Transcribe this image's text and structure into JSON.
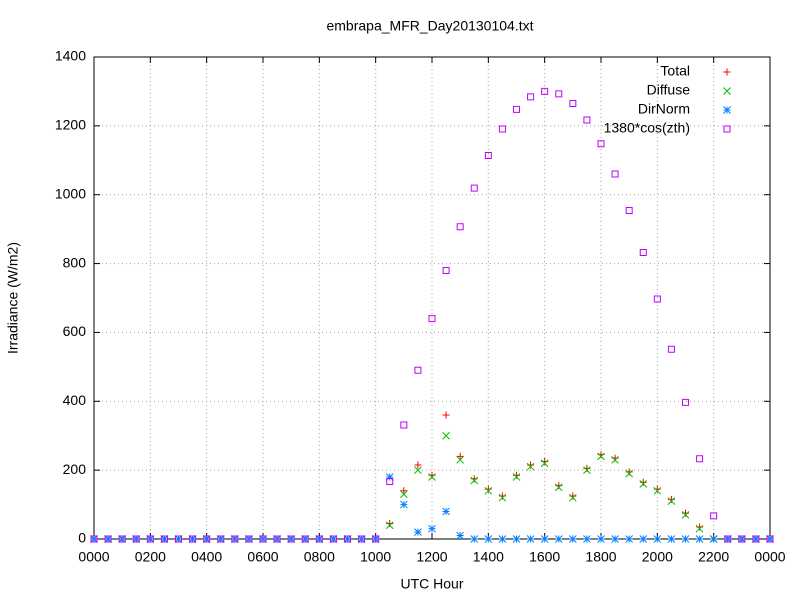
{
  "chart_data": {
    "type": "scatter",
    "title": "embrapa_MFR_Day20130104.txt",
    "x_label": "UTC Hour",
    "y_label": "Irradiance (W/m2)",
    "x": [
      0,
      0.5,
      1,
      1.5,
      2,
      2.5,
      3,
      3.5,
      4,
      4.5,
      5,
      5.5,
      6,
      6.5,
      7,
      7.5,
      8,
      8.5,
      9,
      9.5,
      10,
      10.5,
      11,
      11.5,
      12,
      12.5,
      13,
      13.5,
      14,
      14.5,
      15,
      15.5,
      16,
      16.5,
      17,
      17.5,
      18,
      18.5,
      19,
      19.5,
      20,
      20.5,
      21,
      21.5,
      22,
      22.5,
      23,
      23.5,
      24
    ],
    "series": [
      {
        "name": "Total",
        "color": "#ff0000",
        "marker": "plus",
        "values": [
          0,
          0,
          0,
          0,
          0,
          0,
          0,
          0,
          0,
          0,
          0,
          0,
          0,
          0,
          0,
          0,
          0,
          0,
          0,
          0,
          0,
          45,
          140,
          215,
          185,
          360,
          240,
          175,
          145,
          125,
          185,
          215,
          225,
          155,
          125,
          205,
          245,
          235,
          195,
          165,
          145,
          115,
          75,
          35,
          0,
          0,
          0,
          0,
          0
        ]
      },
      {
        "name": "Diffuse",
        "color": "#00c000",
        "marker": "cross",
        "values": [
          0,
          0,
          0,
          0,
          0,
          0,
          0,
          0,
          0,
          0,
          0,
          0,
          0,
          0,
          0,
          0,
          0,
          0,
          0,
          0,
          0,
          40,
          130,
          200,
          180,
          300,
          230,
          170,
          140,
          120,
          180,
          210,
          220,
          150,
          120,
          200,
          240,
          230,
          190,
          160,
          140,
          110,
          70,
          30,
          0,
          0,
          0,
          0,
          0
        ]
      },
      {
        "name": "DirNorm",
        "color": "#0080ff",
        "marker": "star",
        "values": [
          0,
          0,
          0,
          0,
          0,
          0,
          0,
          0,
          0,
          0,
          0,
          0,
          0,
          0,
          0,
          0,
          0,
          0,
          0,
          0,
          0,
          180,
          100,
          20,
          30,
          80,
          10,
          0,
          0,
          0,
          0,
          0,
          0,
          0,
          0,
          0,
          0,
          0,
          0,
          0,
          0,
          0,
          0,
          0,
          0,
          0,
          0,
          0,
          0
        ]
      },
      {
        "name": "1380*cos(zth)",
        "color": "#c000ff",
        "marker": "square",
        "values": [
          0,
          0,
          0,
          0,
          0,
          0,
          0,
          0,
          0,
          0,
          0,
          0,
          0,
          0,
          0,
          0,
          0,
          0,
          0,
          0,
          0,
          167,
          331,
          490,
          640,
          780,
          907,
          1019,
          1114,
          1191,
          1248,
          1284,
          1300,
          1293,
          1265,
          1217,
          1148,
          1060,
          954,
          832,
          697,
          551,
          397,
          233,
          67,
          0,
          0,
          0,
          0
        ]
      }
    ],
    "xlim": [
      0,
      24
    ],
    "ylim": [
      0,
      1400
    ],
    "xticks": [
      {
        "value": 0,
        "label": "0000"
      },
      {
        "value": 2,
        "label": "0200"
      },
      {
        "value": 4,
        "label": "0400"
      },
      {
        "value": 6,
        "label": "0600"
      },
      {
        "value": 8,
        "label": "0800"
      },
      {
        "value": 10,
        "label": "1000"
      },
      {
        "value": 12,
        "label": "1200"
      },
      {
        "value": 14,
        "label": "1400"
      },
      {
        "value": 16,
        "label": "1600"
      },
      {
        "value": 18,
        "label": "1800"
      },
      {
        "value": 20,
        "label": "2000"
      },
      {
        "value": 22,
        "label": "2200"
      },
      {
        "value": 24,
        "label": "0000"
      }
    ],
    "yticks": [
      0,
      200,
      400,
      600,
      800,
      1000,
      1200,
      1400
    ],
    "grid": true,
    "legend": "upper right"
  }
}
